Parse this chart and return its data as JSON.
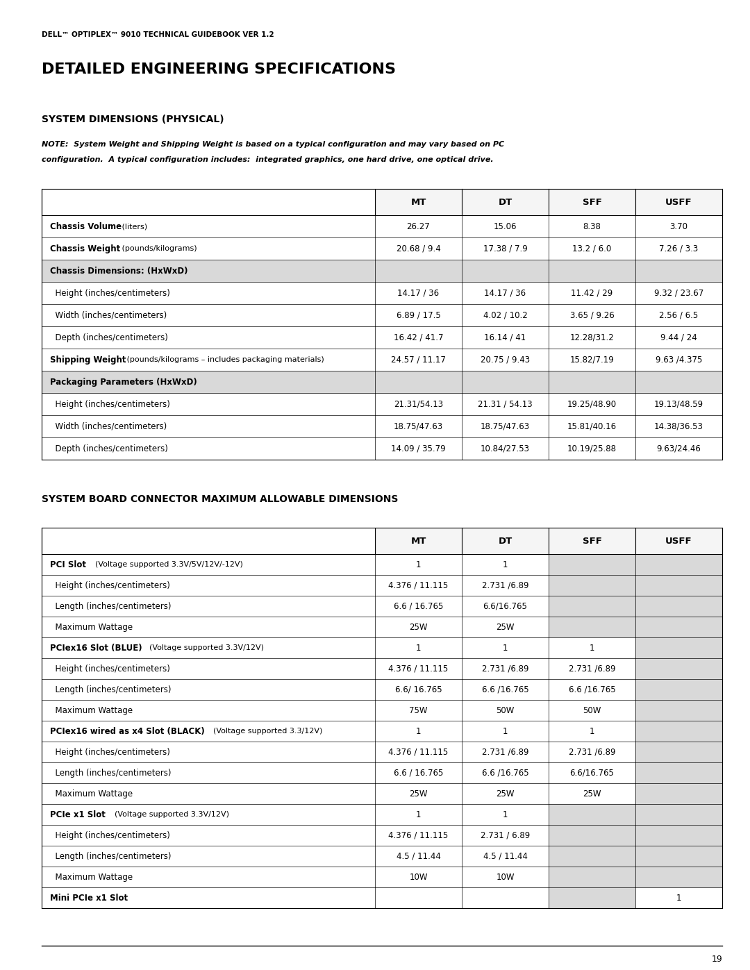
{
  "page_header": "DELL™ OPTIPLEX™ 9010 TECHNICAL GUIDEBOOK VER 1.2",
  "main_title": "DETAILED ENGINEERING SPECIFICATIONS",
  "section1_title": "SYSTEM DIMENSIONS (PHYSICAL)",
  "section1_note": "NOTE:  System Weight and Shipping Weight is based on a typical configuration and may vary based on PC\nconfiguration.  A typical configuration includes:  integrated graphics, one hard drive, one optical drive.",
  "section2_title": "SYSTEM BOARD CONNECTOR MAXIMUM ALLOWABLE DIMENSIONS",
  "col_headers": [
    "MT",
    "DT",
    "SFF",
    "USFF"
  ],
  "table1_rows": [
    {
      "label": "Chassis Volume",
      "label_suffix": " (liters)",
      "bold": true,
      "values": [
        "26.27",
        "15.06",
        "8.38",
        "3.70"
      ],
      "bg": "#ffffff",
      "gray_section": false
    },
    {
      "label": "Chassis Weight",
      "label_suffix": " (pounds/kilograms)",
      "bold": true,
      "values": [
        "20.68 / 9.4",
        "17.38 / 7.9",
        "13.2 / 6.0",
        "7.26 / 3.3"
      ],
      "bg": "#ffffff",
      "gray_section": false
    },
    {
      "label": "Chassis Dimensions: (HxWxD)",
      "label_suffix": "",
      "bold": true,
      "values": [
        "",
        "",
        "",
        ""
      ],
      "bg": "#d9d9d9",
      "gray_section": true
    },
    {
      "label": "  Height (inches/centimeters)",
      "label_suffix": "",
      "bold": false,
      "values": [
        "14.17 / 36",
        "14.17 / 36",
        "11.42 / 29",
        "9.32 / 23.67"
      ],
      "bg": "#ffffff",
      "gray_section": false
    },
    {
      "label": "  Width (inches/centimeters)",
      "label_suffix": "",
      "bold": false,
      "values": [
        "6.89 / 17.5",
        "4.02 / 10.2",
        "3.65 / 9.26",
        "2.56 / 6.5"
      ],
      "bg": "#ffffff",
      "gray_section": false
    },
    {
      "label": "  Depth (inches/centimeters)",
      "label_suffix": "",
      "bold": false,
      "values": [
        "16.42 / 41.7",
        "16.14 / 41",
        "12.28/31.2",
        "9.44 / 24"
      ],
      "bg": "#ffffff",
      "gray_section": false
    },
    {
      "label": "Shipping Weight",
      "label_suffix": " (pounds/kilograms – includes packaging materials)",
      "bold": true,
      "values": [
        "24.57 / 11.17",
        "20.75 / 9.43",
        "15.82/7.19",
        "9.63 /4.375"
      ],
      "bg": "#ffffff",
      "gray_section": false
    },
    {
      "label": "Packaging Parameters (HxWxD)",
      "label_suffix": "",
      "bold": true,
      "values": [
        "",
        "",
        "",
        ""
      ],
      "bg": "#d9d9d9",
      "gray_section": true
    },
    {
      "label": "  Height (inches/centimeters)",
      "label_suffix": "",
      "bold": false,
      "values": [
        "21.31/54.13",
        "21.31 / 54.13",
        "19.25/48.90",
        "19.13/48.59"
      ],
      "bg": "#ffffff",
      "gray_section": false
    },
    {
      "label": "  Width (inches/centimeters)",
      "label_suffix": "",
      "bold": false,
      "values": [
        "18.75/47.63",
        "18.75/47.63",
        "15.81/40.16",
        "14.38/36.53"
      ],
      "bg": "#ffffff",
      "gray_section": false
    },
    {
      "label": "  Depth (inches/centimeters)",
      "label_suffix": "",
      "bold": false,
      "values": [
        "14.09 / 35.79",
        "10.84/27.53",
        "10.19/25.88",
        "9.63/24.46"
      ],
      "bg": "#ffffff",
      "gray_section": false
    }
  ],
  "table2_rows": [
    {
      "label": "PCI Slot",
      "label_suffix": "  (Voltage supported 3.3V/5V/12V/-12V)",
      "bold": true,
      "values": [
        "1",
        "1",
        "",
        ""
      ],
      "gray_sff": true,
      "gray_usff": true
    },
    {
      "label": "  Height (inches/centimeters)",
      "label_suffix": "",
      "bold": false,
      "values": [
        "4.376 / 11.115",
        "2.731 /6.89",
        "",
        ""
      ],
      "gray_sff": true,
      "gray_usff": true
    },
    {
      "label": "  Length (inches/centimeters)",
      "label_suffix": "",
      "bold": false,
      "values": [
        "6.6 / 16.765",
        "6.6/16.765",
        "",
        ""
      ],
      "gray_sff": true,
      "gray_usff": true
    },
    {
      "label": "  Maximum Wattage",
      "label_suffix": "",
      "bold": false,
      "values": [
        "25W",
        "25W",
        "",
        ""
      ],
      "gray_sff": true,
      "gray_usff": true
    },
    {
      "label": "PCIex16 Slot (BLUE)",
      "label_suffix": "  (Voltage supported 3.3V/12V)",
      "bold": true,
      "values": [
        "1",
        "1",
        "1",
        ""
      ],
      "gray_sff": false,
      "gray_usff": true
    },
    {
      "label": "  Height (inches/centimeters)",
      "label_suffix": "",
      "bold": false,
      "values": [
        "4.376 / 11.115",
        "2.731 /6.89",
        "2.731 /6.89",
        ""
      ],
      "gray_sff": false,
      "gray_usff": true
    },
    {
      "label": "  Length (inches/centimeters)",
      "label_suffix": "",
      "bold": false,
      "values": [
        "6.6/ 16.765",
        "6.6 /16.765",
        "6.6 /16.765",
        ""
      ],
      "gray_sff": false,
      "gray_usff": true
    },
    {
      "label": "  Maximum Wattage",
      "label_suffix": "",
      "bold": false,
      "values": [
        "75W",
        "50W",
        "50W",
        ""
      ],
      "gray_sff": false,
      "gray_usff": true
    },
    {
      "label": "PCIex16 wired as x4 Slot (BLACK)",
      "label_suffix": "  (Voltage supported 3.3/12V)",
      "bold": true,
      "values": [
        "1",
        "1",
        "1",
        ""
      ],
      "gray_sff": false,
      "gray_usff": true
    },
    {
      "label": "  Height (inches/centimeters)",
      "label_suffix": "",
      "bold": false,
      "values": [
        "4.376 / 11.115",
        "2.731 /6.89",
        "2.731 /6.89",
        ""
      ],
      "gray_sff": false,
      "gray_usff": true
    },
    {
      "label": "  Length (inches/centimeters)",
      "label_suffix": "",
      "bold": false,
      "values": [
        "6.6 / 16.765",
        "6.6 /16.765",
        "6.6/16.765",
        ""
      ],
      "gray_sff": false,
      "gray_usff": true
    },
    {
      "label": "  Maximum Wattage",
      "label_suffix": "",
      "bold": false,
      "values": [
        "25W",
        "25W",
        "25W",
        ""
      ],
      "gray_sff": false,
      "gray_usff": true
    },
    {
      "label": "PCIe x1 Slot",
      "label_suffix": "  (Voltage supported 3.3V/12V)",
      "bold": true,
      "values": [
        "1",
        "1",
        "",
        ""
      ],
      "gray_sff": true,
      "gray_usff": true
    },
    {
      "label": "  Height (inches/centimeters)",
      "label_suffix": "",
      "bold": false,
      "values": [
        "4.376 / 11.115",
        "2.731 / 6.89",
        "",
        ""
      ],
      "gray_sff": true,
      "gray_usff": true
    },
    {
      "label": "  Length (inches/centimeters)",
      "label_suffix": "",
      "bold": false,
      "values": [
        "4.5 / 11.44",
        "4.5 / 11.44",
        "",
        ""
      ],
      "gray_sff": true,
      "gray_usff": true
    },
    {
      "label": "  Maximum Wattage",
      "label_suffix": "",
      "bold": false,
      "values": [
        "10W",
        "10W",
        "",
        ""
      ],
      "gray_sff": true,
      "gray_usff": true
    },
    {
      "label": "Mini PCIe x1 Slot",
      "label_suffix": "",
      "bold": true,
      "values": [
        "",
        "",
        "",
        "1"
      ],
      "gray_sff": true,
      "gray_usff": false
    }
  ],
  "bg_color": "#ffffff",
  "header_bg": "#d9d9d9",
  "gray_cell": "#d9d9d9",
  "border_color": "#000000",
  "text_color": "#000000",
  "page_number": "19"
}
